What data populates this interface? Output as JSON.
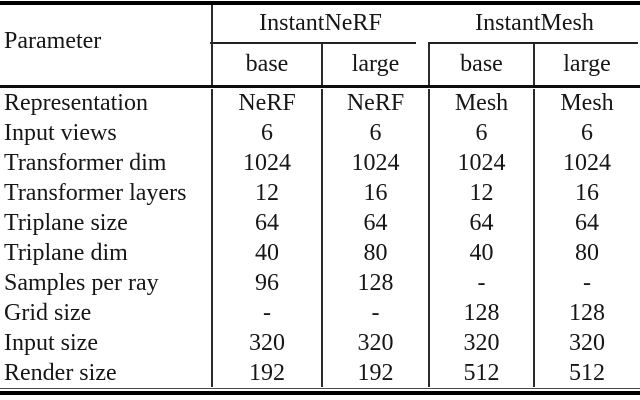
{
  "table": {
    "param_header": "Parameter",
    "groups": [
      {
        "label": "InstantNeRF",
        "subcols": [
          "base",
          "large"
        ]
      },
      {
        "label": "InstantMesh",
        "subcols": [
          "base",
          "large"
        ]
      }
    ],
    "rows": [
      {
        "param": "Representation",
        "values": [
          "NeRF",
          "NeRF",
          "Mesh",
          "Mesh"
        ]
      },
      {
        "param": "Input views",
        "values": [
          "6",
          "6",
          "6",
          "6"
        ]
      },
      {
        "param": "Transformer dim",
        "values": [
          "1024",
          "1024",
          "1024",
          "1024"
        ]
      },
      {
        "param": "Transformer layers",
        "values": [
          "12",
          "16",
          "12",
          "16"
        ]
      },
      {
        "param": "Triplane size",
        "values": [
          "64",
          "64",
          "64",
          "64"
        ]
      },
      {
        "param": "Triplane dim",
        "values": [
          "40",
          "80",
          "40",
          "80"
        ]
      },
      {
        "param": "Samples per ray",
        "values": [
          "96",
          "128",
          "-",
          "-"
        ]
      },
      {
        "param": "Grid size",
        "values": [
          "-",
          "-",
          "128",
          "128"
        ]
      },
      {
        "param": "Input size",
        "values": [
          "320",
          "320",
          "320",
          "320"
        ]
      },
      {
        "param": "Render size",
        "values": [
          "192",
          "192",
          "512",
          "512"
        ]
      }
    ],
    "colors": {
      "background": "#ffffff",
      "text": "#161616",
      "rule": "#000000"
    }
  }
}
